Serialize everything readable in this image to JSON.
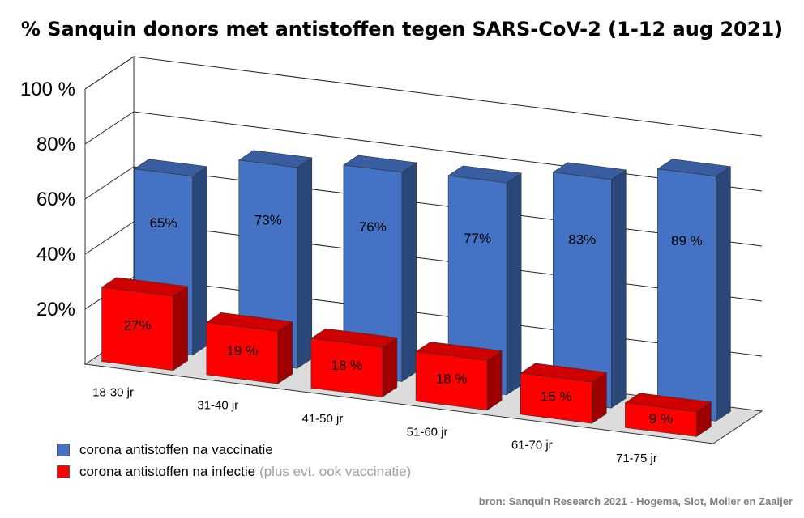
{
  "chart_data": {
    "type": "bar",
    "title": "% Sanquin donors met antistoffen tegen SARS-CoV-2 (1-12 aug 2021)",
    "categories": [
      "18-30 jr",
      "31-40 jr",
      "41-50 jr",
      "51-60 jr",
      "61-70 jr",
      "71-75 jr"
    ],
    "series": [
      {
        "name": "corona antistoffen na vaccinatie",
        "values": [
          65,
          73,
          76,
          77,
          83,
          89
        ],
        "labels": [
          "65%",
          "73%",
          "76%",
          "77%",
          "83%",
          "89 %"
        ],
        "color": "#4472c4"
      },
      {
        "name": "corona antistoffen na infectie",
        "values": [
          27,
          19,
          18,
          18,
          15,
          9
        ],
        "labels": [
          "27%",
          "19 %",
          "18 %",
          "18 %",
          "15 %",
          "9 %"
        ],
        "color": "#ff0000"
      }
    ],
    "y_ticks": [
      "20%",
      "40%",
      "60%",
      "80%",
      "100 %"
    ],
    "ylim": [
      0,
      100
    ],
    "grid": true,
    "legend_position": "bottom-left"
  },
  "legend": {
    "vaccination_label": "corona antistoffen na vaccinatie",
    "infection_label": "corona antistoffen na infectie",
    "infection_note": "(plus evt. ook vaccinatie)"
  },
  "source": "bron: Sanquin Research 2021 - Hogema, Slot, Molier en Zaaijer"
}
